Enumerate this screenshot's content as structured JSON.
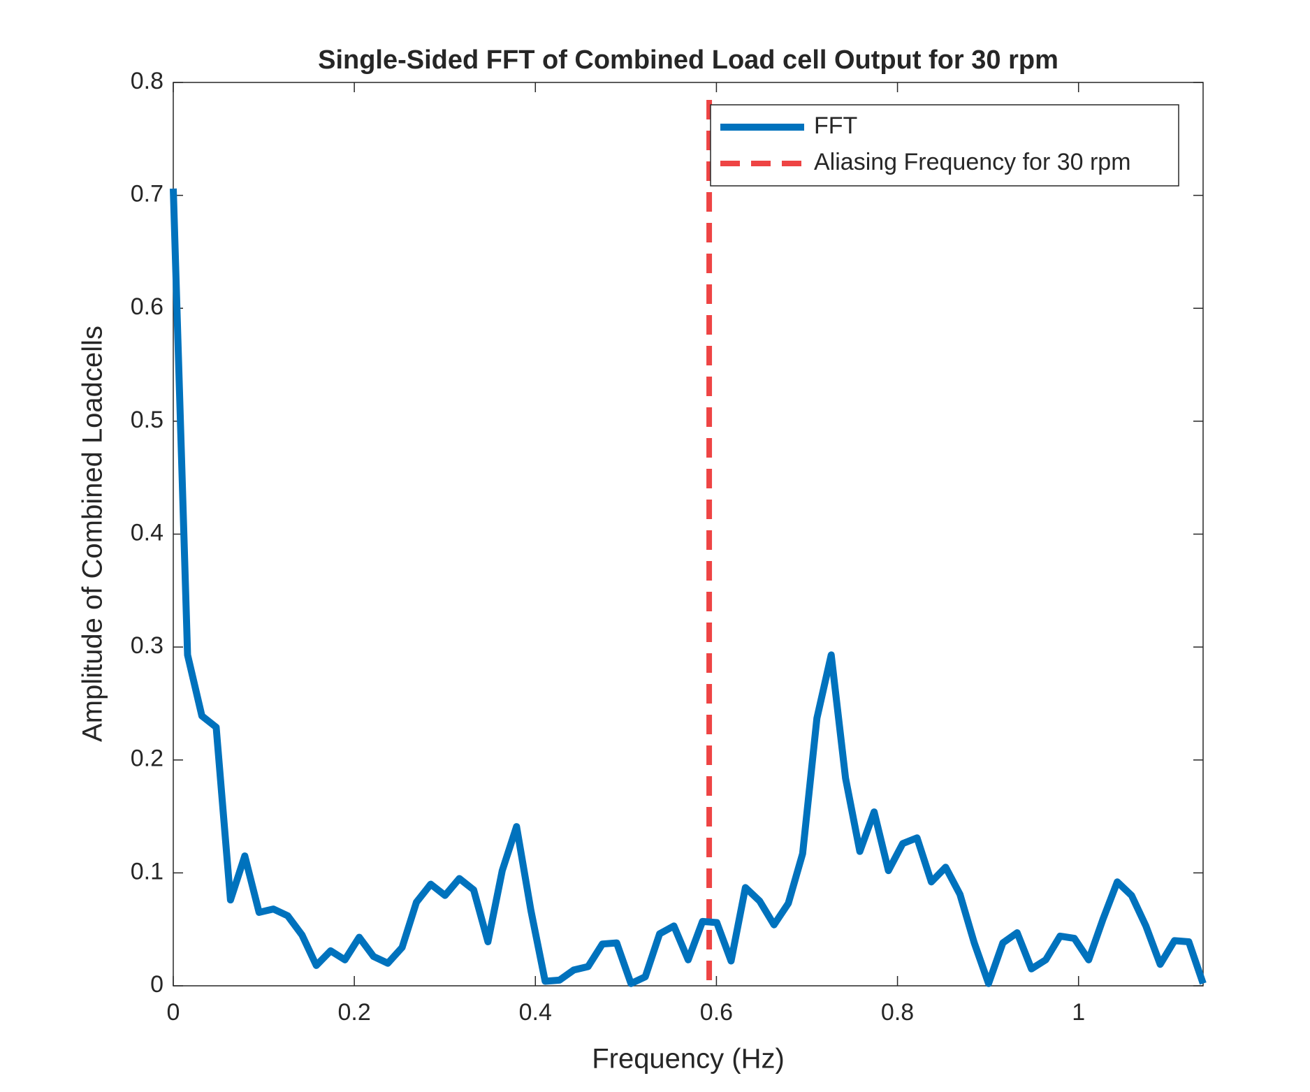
{
  "chart_data": {
    "type": "line",
    "title": "Single-Sided FFT of Combined Load cell Output for 30 rpm",
    "xlabel": "Frequency (Hz)",
    "ylabel": "Amplitude of Combined Loadcells",
    "x": [
      0,
      0.0158,
      0.0316,
      0.0474,
      0.0632,
      0.079,
      0.0948,
      0.1106,
      0.1264,
      0.1422,
      0.158,
      0.1738,
      0.1896,
      0.2054,
      0.2212,
      0.237,
      0.2528,
      0.2686,
      0.2844,
      0.3002,
      0.316,
      0.3318,
      0.3476,
      0.3634,
      0.3792,
      0.395,
      0.4108,
      0.4266,
      0.4424,
      0.4582,
      0.474,
      0.4898,
      0.5056,
      0.5214,
      0.5372,
      0.553,
      0.5688,
      0.5846,
      0.6004,
      0.6162,
      0.632,
      0.6478,
      0.6636,
      0.6794,
      0.6952,
      0.711,
      0.7268,
      0.7426,
      0.7584,
      0.7742,
      0.79,
      0.8058,
      0.8216,
      0.8374,
      0.8532,
      0.869,
      0.8848,
      0.9006,
      0.9164,
      0.9322,
      0.948,
      0.9638,
      0.9796,
      0.9954,
      1.0112,
      1.027,
      1.0428,
      1.0586,
      1.0744,
      1.0902,
      1.106,
      1.1218,
      1.1376
    ],
    "series": [
      {
        "name": "FFT",
        "color": "#0072bd",
        "values": [
          0.706,
          0.293,
          0.239,
          0.229,
          0.076,
          0.115,
          0.065,
          0.068,
          0.062,
          0.045,
          0.018,
          0.031,
          0.023,
          0.043,
          0.026,
          0.02,
          0.034,
          0.074,
          0.09,
          0.08,
          0.095,
          0.085,
          0.039,
          0.102,
          0.141,
          0.067,
          0.004,
          0.005,
          0.014,
          0.017,
          0.037,
          0.038,
          0.002,
          0.008,
          0.046,
          0.053,
          0.023,
          0.057,
          0.056,
          0.022,
          0.087,
          0.075,
          0.054,
          0.073,
          0.117,
          0.237,
          0.293,
          0.184,
          0.119,
          0.154,
          0.102,
          0.126,
          0.131,
          0.092,
          0.105,
          0.081,
          0.038,
          0.002,
          0.038,
          0.047,
          0.015,
          0.023,
          0.044,
          0.042,
          0.023,
          0.059,
          0.092,
          0.08,
          0.053,
          0.019,
          0.04,
          0.039,
          0.002
        ]
      }
    ],
    "vlines": [
      {
        "name": "Aliasing Frequency for 30 rpm",
        "color": "#ee4444",
        "x": 0.592
      }
    ],
    "xlim": [
      0,
      1.1376
    ],
    "ylim": [
      0,
      0.8
    ],
    "xticks": [
      0,
      0.2,
      0.4,
      0.6,
      0.8,
      1
    ],
    "yticks": [
      0,
      0.1,
      0.2,
      0.3,
      0.4,
      0.5,
      0.6,
      0.7,
      0.8
    ],
    "legend": "upper right",
    "grid": false
  }
}
